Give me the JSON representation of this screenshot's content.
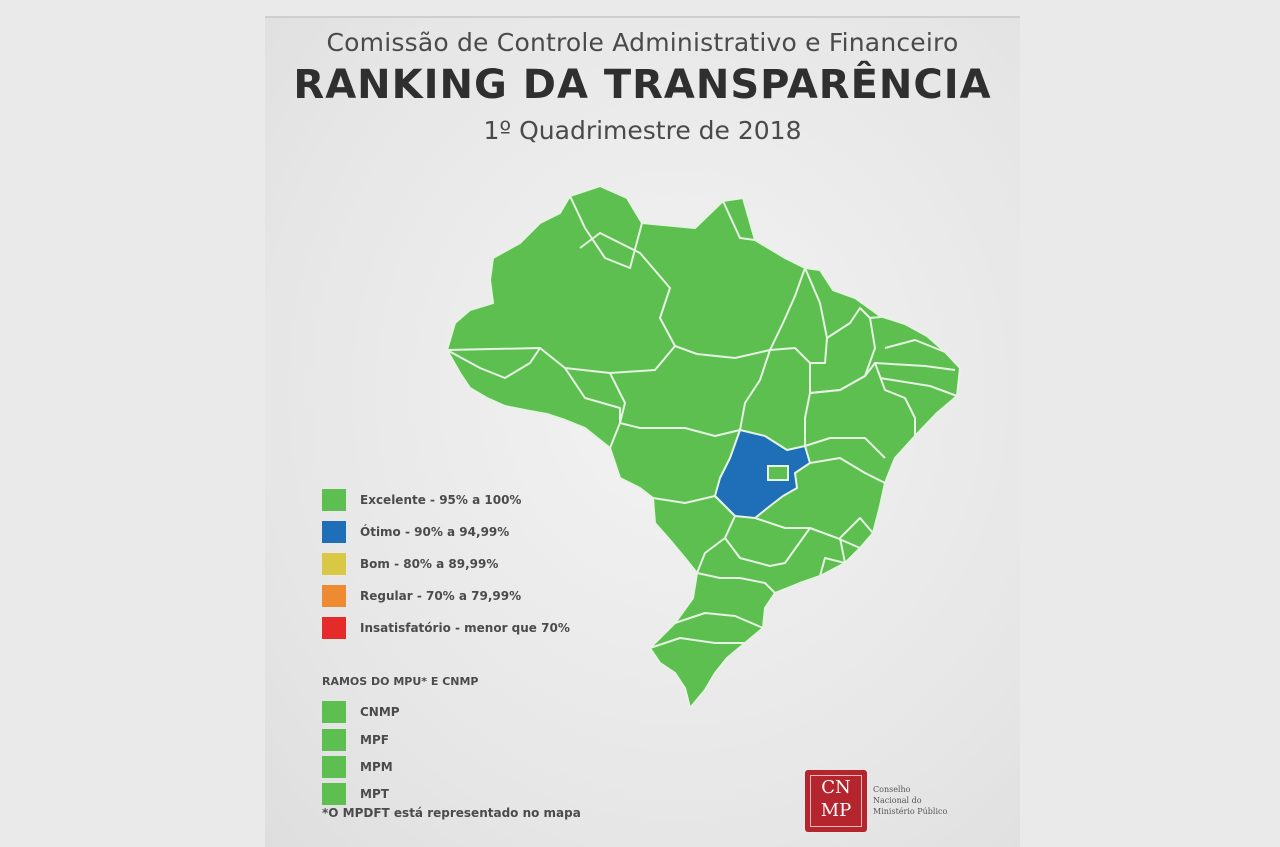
{
  "header": {
    "commission": "Comissão de Controle Administrativo e Financeiro",
    "title": "RANKING  DA TRANSPARÊNCIA",
    "period": "1º Quadrimestre de 2018"
  },
  "colors": {
    "excelente": "#5cbf4f",
    "otimo": "#1e6fb7",
    "bom": "#d8c843",
    "regular": "#ee8a32",
    "insatisfatorio": "#e52a2a",
    "border": "#e6f3e3",
    "logo": "#b5252d"
  },
  "legend": {
    "items": [
      {
        "label": "Excelente - 95% a 100%",
        "color": "#5cbf4f"
      },
      {
        "label": "Ótimo - 90% a 94,99%",
        "color": "#1e6fb7"
      },
      {
        "label": "Bom - 80% a 89,99%",
        "color": "#d8c843"
      },
      {
        "label": "Regular - 70% a 79,99%",
        "color": "#ee8a32"
      },
      {
        "label": "Insatisfatório - menor que 70%",
        "color": "#e52a2a"
      }
    ],
    "ramos_title": "RAMOS DO MPU* E CNMP",
    "ramos": [
      {
        "label": "CNMP",
        "color": "#5cbf4f"
      },
      {
        "label": "MPF",
        "color": "#5cbf4f"
      },
      {
        "label": "MPM",
        "color": "#5cbf4f"
      },
      {
        "label": "MPT",
        "color": "#5cbf4f"
      }
    ]
  },
  "footnote": "*O MPDFT está representado no mapa",
  "logo": {
    "mark_top": "CN",
    "mark_bottom": "MP",
    "line1": "Conselho",
    "line2": "Nacional do",
    "line3": "Ministério Público"
  },
  "map": {
    "regions": [
      {
        "name": "Goiás",
        "rating": "otimo"
      },
      {
        "name": "Demais estados",
        "rating": "excelente"
      }
    ]
  }
}
